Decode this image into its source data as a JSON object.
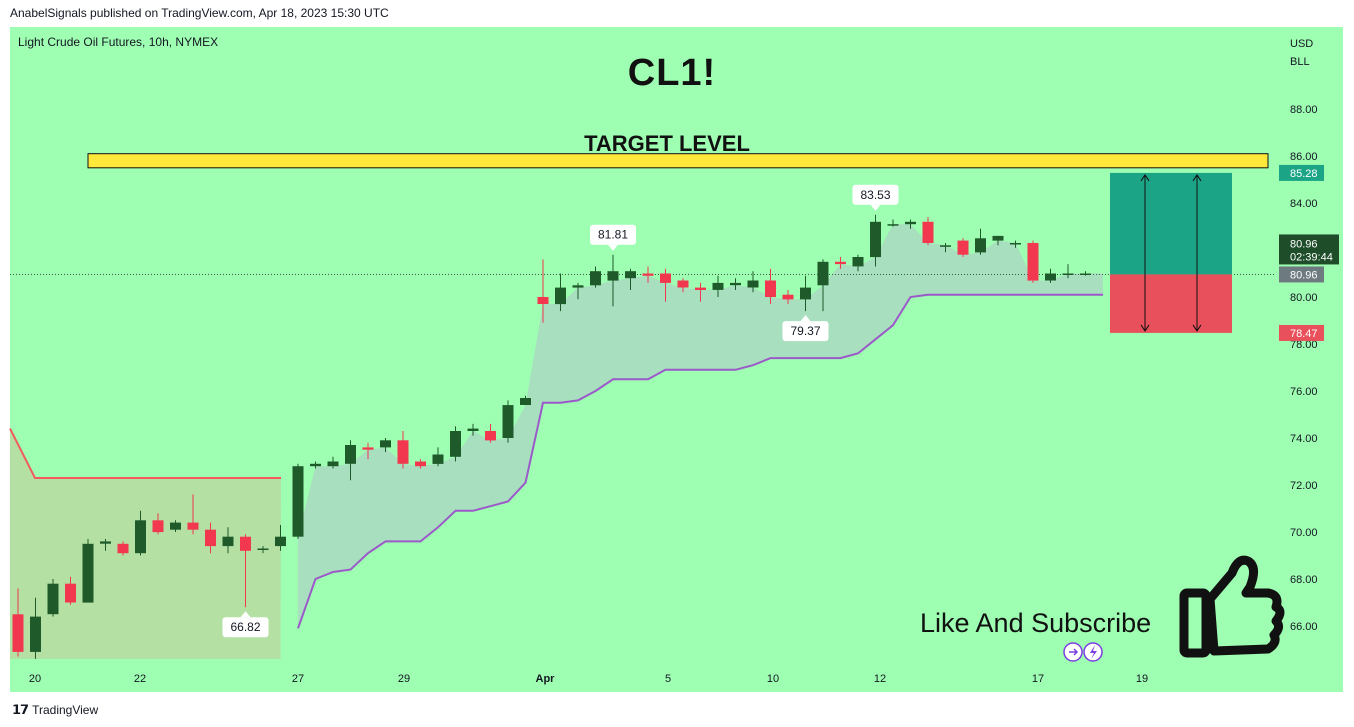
{
  "header": {
    "publisher_line": "AnabelSignals published on TradingView.com, Apr 18, 2023 15:30 UTC"
  },
  "chart": {
    "symbol_line": "Light Crude Oil Futures, 10h, NYMEX",
    "currency": "USD",
    "unit": "BLL",
    "title_overlay": "CL1!",
    "target_label": "TARGET LEVEL",
    "cta_text": "Like And Subscribe",
    "colors": {
      "background": "#9efeb2",
      "up": "#1e5a2a",
      "down": "#f2384f",
      "target_band": "#ffe83a",
      "stop_zone": "#e8505b",
      "profit_zone": "#1ba586",
      "supertrend_up": "#9b59c9",
      "supertrend_down": "#f25c5c"
    }
  },
  "chart_data": {
    "type": "candlestick",
    "y_axis": {
      "ticks": [
        "66.00",
        "68.00",
        "70.00",
        "72.00",
        "74.00",
        "76.00",
        "78.00",
        "80.00",
        "82.00",
        "84.00",
        "86.00",
        "88.00"
      ],
      "ylim": [
        64.5,
        89.5
      ]
    },
    "x_axis": {
      "ticks": [
        "20",
        "22",
        "27",
        "29",
        "Apr",
        "5",
        "10",
        "12",
        "17",
        "19"
      ]
    },
    "candles": [
      {
        "o": 66.5,
        "h": 67.6,
        "l": 64.7,
        "c": 64.9
      },
      {
        "o": 64.9,
        "h": 67.2,
        "l": 64.6,
        "c": 66.4
      },
      {
        "o": 66.5,
        "h": 68.0,
        "l": 66.4,
        "c": 67.8
      },
      {
        "o": 67.8,
        "h": 68.1,
        "l": 66.9,
        "c": 67.0
      },
      {
        "o": 67.0,
        "h": 69.7,
        "l": 67.0,
        "c": 69.5
      },
      {
        "o": 69.5,
        "h": 69.7,
        "l": 69.2,
        "c": 69.6
      },
      {
        "o": 69.5,
        "h": 69.6,
        "l": 69.0,
        "c": 69.1
      },
      {
        "o": 69.1,
        "h": 70.9,
        "l": 69.0,
        "c": 70.5
      },
      {
        "o": 70.5,
        "h": 70.8,
        "l": 69.9,
        "c": 70.0
      },
      {
        "o": 70.1,
        "h": 70.5,
        "l": 70.0,
        "c": 70.4
      },
      {
        "o": 70.4,
        "h": 71.6,
        "l": 69.9,
        "c": 70.1
      },
      {
        "o": 70.1,
        "h": 70.4,
        "l": 69.1,
        "c": 69.4
      },
      {
        "o": 69.4,
        "h": 70.2,
        "l": 69.1,
        "c": 69.8
      },
      {
        "o": 69.8,
        "h": 69.9,
        "l": 66.8,
        "c": 69.2
      },
      {
        "o": 69.3,
        "h": 69.4,
        "l": 69.1,
        "c": 69.3
      },
      {
        "o": 69.4,
        "h": 70.3,
        "l": 69.2,
        "c": 69.8
      },
      {
        "o": 69.8,
        "h": 72.9,
        "l": 69.7,
        "c": 72.8
      },
      {
        "o": 72.8,
        "h": 73.0,
        "l": 72.7,
        "c": 72.9
      },
      {
        "o": 72.8,
        "h": 73.2,
        "l": 72.7,
        "c": 73.0
      },
      {
        "o": 72.9,
        "h": 73.9,
        "l": 72.2,
        "c": 73.7
      },
      {
        "o": 73.6,
        "h": 73.8,
        "l": 73.1,
        "c": 73.5
      },
      {
        "o": 73.6,
        "h": 74.0,
        "l": 73.4,
        "c": 73.9
      },
      {
        "o": 73.9,
        "h": 74.3,
        "l": 72.7,
        "c": 72.9
      },
      {
        "o": 73.0,
        "h": 73.1,
        "l": 72.7,
        "c": 72.8
      },
      {
        "o": 72.9,
        "h": 73.6,
        "l": 72.8,
        "c": 73.3
      },
      {
        "o": 73.2,
        "h": 74.5,
        "l": 73.0,
        "c": 74.3
      },
      {
        "o": 74.3,
        "h": 74.6,
        "l": 74.1,
        "c": 74.4
      },
      {
        "o": 74.3,
        "h": 74.6,
        "l": 73.8,
        "c": 73.9
      },
      {
        "o": 74.0,
        "h": 75.6,
        "l": 73.8,
        "c": 75.4
      },
      {
        "o": 75.4,
        "h": 75.8,
        "l": 75.4,
        "c": 75.7
      },
      {
        "o": 80.0,
        "h": 81.6,
        "l": 78.9,
        "c": 79.7
      },
      {
        "o": 79.7,
        "h": 81.0,
        "l": 79.4,
        "c": 80.4
      },
      {
        "o": 80.4,
        "h": 80.6,
        "l": 79.9,
        "c": 80.5
      },
      {
        "o": 80.5,
        "h": 81.3,
        "l": 80.4,
        "c": 81.1
      },
      {
        "o": 80.7,
        "h": 81.8,
        "l": 79.6,
        "c": 81.1
      },
      {
        "o": 80.8,
        "h": 81.2,
        "l": 80.3,
        "c": 81.1
      },
      {
        "o": 81.0,
        "h": 81.3,
        "l": 80.6,
        "c": 80.9
      },
      {
        "o": 81.0,
        "h": 81.2,
        "l": 79.8,
        "c": 80.6
      },
      {
        "o": 80.7,
        "h": 80.8,
        "l": 80.2,
        "c": 80.4
      },
      {
        "o": 80.4,
        "h": 80.6,
        "l": 79.8,
        "c": 80.3
      },
      {
        "o": 80.3,
        "h": 80.9,
        "l": 80.0,
        "c": 80.6
      },
      {
        "o": 80.5,
        "h": 80.8,
        "l": 80.3,
        "c": 80.6
      },
      {
        "o": 80.4,
        "h": 81.1,
        "l": 80.2,
        "c": 80.7
      },
      {
        "o": 80.7,
        "h": 81.2,
        "l": 79.7,
        "c": 80.0
      },
      {
        "o": 80.1,
        "h": 80.3,
        "l": 79.7,
        "c": 79.9
      },
      {
        "o": 79.9,
        "h": 80.9,
        "l": 79.4,
        "c": 80.4
      },
      {
        "o": 80.5,
        "h": 81.6,
        "l": 79.4,
        "c": 81.5
      },
      {
        "o": 81.5,
        "h": 81.7,
        "l": 81.2,
        "c": 81.4
      },
      {
        "o": 81.3,
        "h": 81.8,
        "l": 81.1,
        "c": 81.7
      },
      {
        "o": 81.7,
        "h": 83.5,
        "l": 81.3,
        "c": 83.2
      },
      {
        "o": 83.1,
        "h": 83.3,
        "l": 83.0,
        "c": 83.1
      },
      {
        "o": 83.1,
        "h": 83.3,
        "l": 82.9,
        "c": 83.2
      },
      {
        "o": 83.2,
        "h": 83.4,
        "l": 82.2,
        "c": 82.3
      },
      {
        "o": 82.2,
        "h": 82.3,
        "l": 81.9,
        "c": 82.2
      },
      {
        "o": 82.4,
        "h": 82.5,
        "l": 81.7,
        "c": 81.8
      },
      {
        "o": 81.9,
        "h": 82.9,
        "l": 81.8,
        "c": 82.5
      },
      {
        "o": 82.4,
        "h": 82.6,
        "l": 82.2,
        "c": 82.6
      },
      {
        "o": 82.3,
        "h": 82.4,
        "l": 82.1,
        "c": 82.3
      },
      {
        "o": 82.3,
        "h": 82.4,
        "l": 80.6,
        "c": 80.7
      },
      {
        "o": 80.7,
        "h": 81.2,
        "l": 80.6,
        "c": 81.0
      },
      {
        "o": 81.0,
        "h": 81.4,
        "l": 80.8,
        "c": 81.0
      },
      {
        "o": 81.0,
        "h": 81.1,
        "l": 80.9,
        "c": 81.0
      }
    ],
    "supertrend_down": [
      74.4,
      72.3,
      72.3
    ],
    "supertrend_up": [
      65.9,
      68.0,
      68.3,
      68.4,
      69.1,
      69.6,
      69.6,
      69.6,
      70.2,
      70.9,
      70.9,
      71.1,
      71.3,
      72.1,
      75.5,
      75.5,
      75.6,
      76.0,
      76.5,
      76.5,
      76.5,
      76.9,
      76.9,
      76.9,
      76.9,
      76.9,
      77.1,
      77.4,
      77.4,
      77.4,
      77.4,
      77.4,
      77.6,
      78.2,
      78.8,
      80.0,
      80.1,
      80.1,
      80.1,
      80.1,
      80.1,
      80.1,
      80.1,
      80.1,
      80.1,
      80.1,
      80.1
    ],
    "price_labels": {
      "target": "85.28",
      "current": "80.96",
      "countdown": "02:39:44",
      "entry": "80.96",
      "stop": "78.47"
    },
    "annotations": [
      {
        "text": "66.82",
        "candle": 13,
        "side": "below"
      },
      {
        "text": "81.81",
        "candle": 34,
        "side": "above"
      },
      {
        "text": "79.37",
        "candle": 45,
        "side": "below"
      },
      {
        "text": "83.53",
        "candle": 49,
        "side": "above"
      }
    ],
    "target_band": [
      85.5,
      86.1
    ],
    "position": {
      "entry": 80.96,
      "target": 85.28,
      "stop": 78.47
    }
  },
  "footer": {
    "brand": "TradingView"
  }
}
